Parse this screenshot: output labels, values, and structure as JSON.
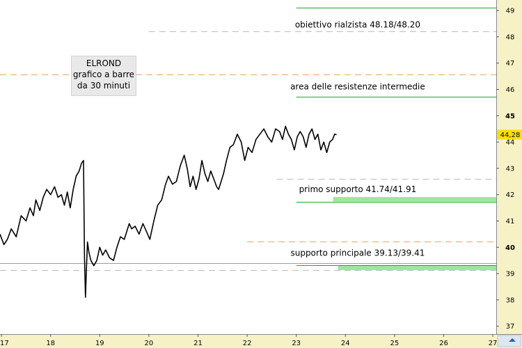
{
  "chart_data": {
    "type": "line",
    "title": "ELROND",
    "subtitle": [
      "grafico a barre",
      "da 30 minuti"
    ],
    "x_ticks": [
      "17",
      "18",
      "19",
      "20",
      "21",
      "22",
      "23",
      "24",
      "25",
      "26",
      "27"
    ],
    "y_ticks": [
      37,
      38,
      39,
      40,
      41,
      42,
      43,
      44,
      45,
      46,
      47,
      48,
      49
    ],
    "y_ticks_bold": [
      40,
      45
    ],
    "ylim": [
      36.7,
      49.4
    ],
    "xlim": [
      16.97,
      27.07
    ],
    "last_price_label": "44,28",
    "series": [
      {
        "x": [
          16.97,
          17.05,
          17.12,
          17.2,
          17.3,
          17.4,
          17.5,
          17.58,
          17.65,
          17.7,
          17.78,
          17.85,
          17.92,
          18.0,
          18.08,
          18.15,
          18.22,
          18.28,
          18.34,
          18.4,
          18.46,
          18.52,
          18.58,
          18.63,
          18.67,
          18.69,
          18.71,
          18.73,
          18.75,
          18.78,
          18.82,
          18.88,
          18.94,
          19.0,
          19.06,
          19.12,
          19.2,
          19.28,
          19.35,
          19.42,
          19.5,
          19.55,
          19.6,
          19.65,
          19.72,
          19.8,
          19.88,
          19.95,
          20.02,
          20.1,
          20.18,
          20.26,
          20.34,
          20.4,
          20.48,
          20.56,
          20.64,
          20.72,
          20.78,
          20.84,
          20.9,
          20.96,
          21.02,
          21.08,
          21.14,
          21.2,
          21.26,
          21.32,
          21.38,
          21.42,
          21.47,
          21.52,
          21.58,
          21.65,
          21.72,
          21.8,
          21.88,
          21.95,
          22.02,
          22.1,
          22.18,
          22.26,
          22.34,
          22.42,
          22.5,
          22.58,
          22.66,
          22.72,
          22.78,
          22.84,
          22.9,
          22.96,
          23.02,
          23.08,
          23.14,
          23.2,
          23.26,
          23.32,
          23.38,
          23.44,
          23.5,
          23.56,
          23.62,
          23.68,
          23.74,
          23.78,
          23.82
        ],
        "y": [
          40.5,
          40.1,
          40.3,
          40.7,
          40.4,
          41.2,
          41.0,
          41.5,
          41.2,
          41.8,
          41.4,
          41.9,
          42.2,
          42.0,
          42.3,
          41.9,
          42.0,
          41.6,
          42.1,
          41.5,
          42.2,
          42.7,
          42.9,
          43.2,
          43.3,
          39.6,
          38.1,
          39.2,
          40.2,
          39.8,
          39.5,
          39.3,
          39.5,
          40.0,
          39.7,
          39.9,
          39.6,
          39.5,
          40.0,
          40.4,
          40.3,
          40.6,
          40.9,
          40.7,
          40.8,
          40.5,
          40.9,
          40.6,
          40.3,
          41.0,
          41.6,
          41.8,
          42.4,
          42.7,
          42.4,
          42.5,
          43.1,
          43.5,
          43.0,
          42.3,
          42.7,
          42.2,
          42.6,
          43.3,
          42.8,
          42.5,
          42.9,
          42.6,
          42.3,
          42.2,
          42.5,
          42.8,
          43.3,
          43.8,
          43.9,
          44.3,
          44.0,
          43.3,
          43.8,
          43.6,
          44.1,
          44.3,
          44.5,
          44.2,
          44.0,
          44.5,
          44.4,
          44.1,
          44.6,
          44.3,
          44.1,
          43.7,
          44.2,
          44.4,
          44.2,
          43.8,
          44.3,
          44.5,
          44.1,
          44.3,
          43.7,
          44.0,
          43.6,
          44.0,
          44.1,
          44.3,
          44.28
        ]
      }
    ],
    "levels": [
      {
        "y": 49.11,
        "color": "#22a52c",
        "style": "solid",
        "x0": 23.0
      },
      {
        "y": 48.2,
        "color": "#bdbdbd",
        "style": "dashed",
        "x0": 20.0
      },
      {
        "y": 46.56,
        "color": "#f0a35a",
        "style": "dashed",
        "x0": 16.97
      },
      {
        "y": 45.73,
        "color": "#22a52c",
        "style": "solid",
        "x0": 23.0
      },
      {
        "y": 42.6,
        "color": "#bdbdbd",
        "style": "dashed",
        "x0": 22.6
      },
      {
        "y": 41.74,
        "color": "#22a52c",
        "style": "solid",
        "x0": 23.0
      },
      {
        "y": 40.21,
        "color": "#f0a35a",
        "style": "dashed",
        "x0": 22.0
      },
      {
        "y": 39.41,
        "color": "#9e9e9e",
        "style": "solid",
        "x0": 16.97
      },
      {
        "y": 39.32,
        "color": "#22a52c",
        "style": "solid",
        "x0": 23.0
      },
      {
        "y": 39.13,
        "color": "#bdbdbd",
        "style": "dashed",
        "x0": 16.97
      }
    ],
    "zones": [
      {
        "y0": 41.74,
        "y1": 41.91,
        "color": "#9be89b",
        "x0": 23.75
      },
      {
        "y0": 39.13,
        "y1": 39.32,
        "color": "#9be89b",
        "x0": 23.85
      }
    ],
    "annotations": [
      {
        "text": "obiettivo rialzista 48.18/48.20",
        "y": 48.36,
        "x": 24.25
      },
      {
        "text": "area delle resistenze intermedie",
        "y": 46.0,
        "x": 24.25
      },
      {
        "text": "primo supporto 41.74/41.91",
        "y": 42.1,
        "x": 24.25
      },
      {
        "text": "supporto principale 39.13/39.41",
        "y": 39.68,
        "x": 24.25
      }
    ],
    "colors": {
      "price": "#000000",
      "axis_band": "#f6f2c6",
      "last_price_bg": "#ffe000",
      "grid": "#eeeeee"
    }
  }
}
